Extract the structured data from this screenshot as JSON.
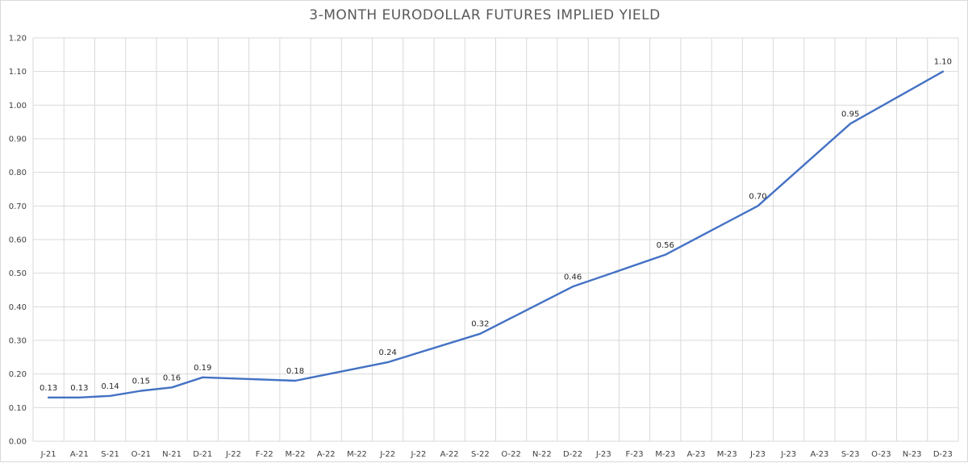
{
  "chart_data": {
    "type": "line",
    "title": "3-MONTH EURODOLLAR FUTURES IMPLIED YIELD",
    "xlabel": "",
    "ylabel": "",
    "ylim": [
      0,
      1.2
    ],
    "y_ticks": [
      "0.00",
      "0.10",
      "0.20",
      "0.30",
      "0.40",
      "0.50",
      "0.60",
      "0.70",
      "0.80",
      "0.90",
      "1.00",
      "1.10",
      "1.20"
    ],
    "categories": [
      "J-21",
      "A-21",
      "S-21",
      "O-21",
      "N-21",
      "D-21",
      "J-22",
      "F-22",
      "M-22",
      "A-22",
      "M-22",
      "J-22",
      "J-22",
      "A-22",
      "S-22",
      "O-22",
      "N-22",
      "D-22",
      "J-23",
      "F-23",
      "M-23",
      "A-23",
      "M-23",
      "J-23",
      "J-23",
      "A-23",
      "S-23",
      "O-23",
      "N-23",
      "D-23"
    ],
    "grid": true,
    "legend": "none",
    "series": [
      {
        "color": "#4472c4",
        "points": [
          {
            "x": "J-21",
            "y": 0.13,
            "label": "0.13"
          },
          {
            "x": "A-21",
            "y": 0.13,
            "label": "0.13"
          },
          {
            "x": "S-21",
            "y": 0.135,
            "label": "0.14"
          },
          {
            "x": "O-21",
            "y": 0.15,
            "label": "0.15"
          },
          {
            "x": "N-21",
            "y": 0.16,
            "label": "0.16"
          },
          {
            "x": "D-21",
            "y": 0.19,
            "label": "0.19"
          },
          {
            "x": "M-22",
            "y": 0.18,
            "label": "0.18"
          },
          {
            "x": "J-22",
            "y": 0.235,
            "label": "0.24"
          },
          {
            "x": "S-22",
            "y": 0.32,
            "label": "0.32"
          },
          {
            "x": "D-22",
            "y": 0.46,
            "label": "0.46"
          },
          {
            "x": "M-23",
            "y": 0.555,
            "label": "0.56"
          },
          {
            "x": "J-23",
            "y": 0.7,
            "label": "0.70"
          },
          {
            "x": "S-23",
            "y": 0.945,
            "label": "0.95"
          },
          {
            "x": "D-23",
            "y": 1.1,
            "label": "1.10"
          }
        ]
      }
    ]
  }
}
